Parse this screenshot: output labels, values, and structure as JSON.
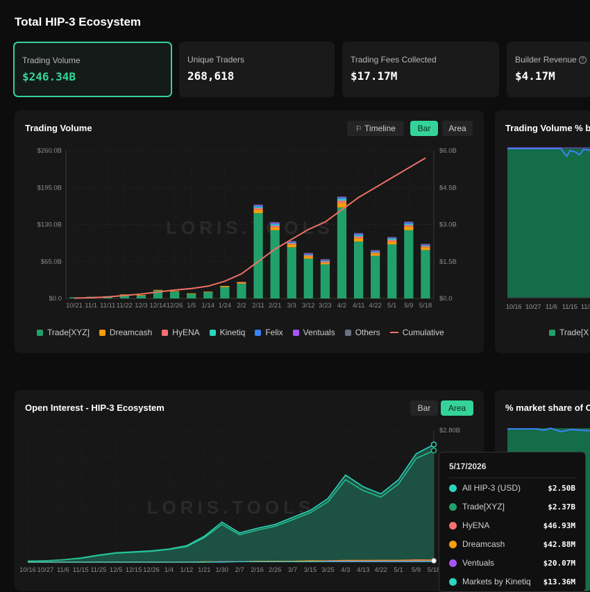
{
  "page_title": "Total HIP-3 Ecosystem",
  "kpis": [
    {
      "label": "Trading Volume",
      "value": "$246.34B"
    },
    {
      "label": "Unique Traders",
      "value": "268,618"
    },
    {
      "label": "Trading Fees Collected",
      "value": "$17.17M"
    },
    {
      "label": "Builder Revenue",
      "value": "$4.17M"
    }
  ],
  "volume_card": {
    "title": "Trading Volume",
    "toggles": {
      "timeline": "Timeline",
      "bar": "Bar",
      "area": "Area"
    },
    "watermark": "LORIS.TOOLS"
  },
  "share_card": {
    "title": "Trading Volume % b",
    "legend_first": "Trade[X"
  },
  "oi_card": {
    "title": "Open Interest - HIP-3 Ecosystem",
    "toggles": {
      "bar": "Bar",
      "area": "Area"
    },
    "watermark": "LORIS.TOOLS"
  },
  "market_card": {
    "title": "% market share of O"
  },
  "legend": [
    {
      "name": "Trade[XYZ]",
      "color": "#22a06b"
    },
    {
      "name": "Dreamcash",
      "color": "#f59e0b"
    },
    {
      "name": "HyENA",
      "color": "#f87171"
    },
    {
      "name": "Kinetiq",
      "color": "#2dd4bf"
    },
    {
      "name": "Felix",
      "color": "#3b82f6"
    },
    {
      "name": "Ventuals",
      "color": "#a855f7"
    },
    {
      "name": "Others",
      "color": "#6b7280"
    },
    {
      "name": "Cumulative",
      "color": "#f07167"
    }
  ],
  "tooltip": {
    "date": "5/17/2026",
    "rows": [
      {
        "name": "All HIP-3 (USD)",
        "value": "$2.50B",
        "color": "#2dd4bf"
      },
      {
        "name": "Trade[XYZ]",
        "value": "$2.37B",
        "color": "#22a06b"
      },
      {
        "name": "HyENA",
        "value": "$46.93M",
        "color": "#f87171"
      },
      {
        "name": "Dreamcash",
        "value": "$42.88M",
        "color": "#f59e0b"
      },
      {
        "name": "Ventuals",
        "value": "$20.07M",
        "color": "#a855f7"
      },
      {
        "name": "Markets by Kinetiq",
        "value": "$13.36M",
        "color": "#2dd4bf"
      }
    ]
  },
  "chart_data": [
    {
      "type": "bar",
      "title": "Trading Volume",
      "xlabel": "",
      "ylabel": "",
      "categories": [
        "10/21",
        "11/1",
        "11/11",
        "11/22",
        "12/3",
        "12/14",
        "12/26",
        "1/5",
        "1/14",
        "1/24",
        "2/2",
        "2/11",
        "2/21",
        "3/3",
        "3/12",
        "3/23",
        "4/2",
        "4/11",
        "4/22",
        "5/1",
        "5/9",
        "5/18"
      ],
      "y_ticks": [
        "$0.0",
        "$65.0B",
        "$130.0B",
        "$195.0B",
        "$260.0B"
      ],
      "ylim": [
        0,
        260
      ],
      "y2_ticks": [
        "$0.0",
        "$1.5B",
        "$3.0B",
        "$4.5B",
        "$6.0B"
      ],
      "y2lim": [
        0,
        6.0
      ],
      "series": [
        {
          "name": "Trade[XYZ]",
          "values": [
            2,
            3,
            4,
            6,
            5,
            14,
            12,
            8,
            11,
            20,
            26,
            150,
            120,
            90,
            70,
            60,
            160,
            100,
            75,
            95,
            120,
            85
          ]
        },
        {
          "name": "Dreamcash",
          "values": [
            0,
            0,
            0,
            1,
            1,
            1,
            1,
            1,
            1,
            2,
            2,
            6,
            5,
            5,
            4,
            3,
            8,
            6,
            4,
            5,
            6,
            5
          ]
        },
        {
          "name": "HyENA",
          "values": [
            0,
            0,
            0,
            0,
            0,
            0,
            0,
            0,
            0,
            0,
            1,
            3,
            3,
            2,
            2,
            2,
            4,
            3,
            2,
            3,
            3,
            2
          ]
        },
        {
          "name": "Kinetiq",
          "values": [
            0,
            0,
            0,
            0,
            0,
            0,
            0,
            0,
            0,
            0,
            0,
            2,
            2,
            1,
            1,
            1,
            3,
            2,
            1,
            2,
            2,
            1
          ]
        },
        {
          "name": "Felix",
          "values": [
            0,
            0,
            0,
            0,
            0,
            0,
            0,
            0,
            0,
            0,
            0,
            2,
            2,
            1,
            1,
            1,
            2,
            2,
            1,
            1,
            2,
            1
          ]
        },
        {
          "name": "Ventuals",
          "values": [
            0,
            0,
            0,
            0,
            0,
            0,
            0,
            0,
            0,
            0,
            0,
            1,
            1,
            1,
            1,
            1,
            1,
            1,
            1,
            1,
            1,
            1
          ]
        },
        {
          "name": "Others",
          "values": [
            0,
            0,
            0,
            0,
            0,
            0,
            0,
            0,
            0,
            0,
            0,
            1,
            1,
            1,
            1,
            1,
            1,
            1,
            1,
            1,
            1,
            1
          ]
        },
        {
          "name": "Cumulative",
          "axis": "right",
          "values": [
            0.01,
            0.03,
            0.06,
            0.12,
            0.18,
            0.26,
            0.34,
            0.4,
            0.5,
            0.7,
            1.0,
            1.5,
            2.0,
            2.4,
            2.8,
            3.1,
            3.6,
            4.1,
            4.5,
            4.9,
            5.3,
            5.7
          ]
        }
      ]
    },
    {
      "type": "area",
      "title": "Open Interest - HIP-3 Ecosystem",
      "categories": [
        "10/16",
        "10/27",
        "11/6",
        "11/15",
        "11/25",
        "12/5",
        "12/15",
        "12/26",
        "1/4",
        "1/12",
        "1/21",
        "1/30",
        "2/7",
        "2/16",
        "2/26",
        "3/7",
        "3/15",
        "3/25",
        "4/3",
        "4/13",
        "4/22",
        "5/1",
        "5/9",
        "5/18"
      ],
      "y_ticks_visible": [
        "$2.80B"
      ],
      "ylim": [
        0,
        2.8
      ],
      "series": [
        {
          "name": "All HIP-3 (USD)",
          "values": [
            0.02,
            0.03,
            0.05,
            0.09,
            0.15,
            0.2,
            0.22,
            0.24,
            0.28,
            0.35,
            0.55,
            0.85,
            0.62,
            0.72,
            0.8,
            0.95,
            1.1,
            1.35,
            1.85,
            1.6,
            1.45,
            1.75,
            2.3,
            2.5
          ]
        },
        {
          "name": "Trade[XYZ]",
          "values": [
            0.02,
            0.03,
            0.05,
            0.08,
            0.14,
            0.19,
            0.21,
            0.23,
            0.27,
            0.33,
            0.52,
            0.8,
            0.58,
            0.68,
            0.76,
            0.9,
            1.05,
            1.28,
            1.75,
            1.52,
            1.38,
            1.66,
            2.2,
            2.37
          ]
        },
        {
          "name": "HyENA",
          "values": [
            0,
            0,
            0,
            0,
            0,
            0,
            0,
            0,
            0,
            0,
            0,
            0.01,
            0.01,
            0.01,
            0.02,
            0.02,
            0.02,
            0.03,
            0.03,
            0.03,
            0.04,
            0.04,
            0.05,
            0.047
          ]
        },
        {
          "name": "Dreamcash",
          "values": [
            0,
            0,
            0,
            0,
            0,
            0,
            0,
            0,
            0,
            0,
            0.01,
            0.01,
            0.01,
            0.02,
            0.02,
            0.02,
            0.03,
            0.03,
            0.04,
            0.04,
            0.04,
            0.04,
            0.04,
            0.043
          ]
        },
        {
          "name": "Ventuals",
          "values": [
            0,
            0,
            0,
            0,
            0,
            0,
            0,
            0,
            0,
            0,
            0,
            0.01,
            0.01,
            0.01,
            0.01,
            0.01,
            0.01,
            0.02,
            0.02,
            0.02,
            0.02,
            0.02,
            0.02,
            0.02
          ]
        },
        {
          "name": "Markets by Kinetiq",
          "values": [
            0,
            0,
            0,
            0,
            0,
            0,
            0,
            0,
            0,
            0,
            0,
            0,
            0.01,
            0.01,
            0.01,
            0.01,
            0.01,
            0.01,
            0.01,
            0.01,
            0.01,
            0.01,
            0.01,
            0.013
          ]
        }
      ]
    }
  ]
}
